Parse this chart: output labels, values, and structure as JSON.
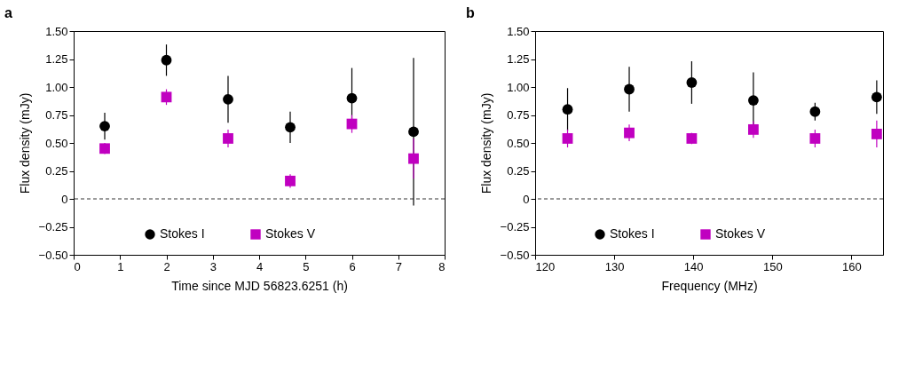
{
  "chart_data": [
    {
      "type": "scatter",
      "title": "a",
      "xlabel": "Time since MJD 56823.6251 (h)",
      "ylabel": "Flux density (mJy)",
      "x": [
        0.67,
        2,
        3.33,
        4.67,
        6,
        7.33
      ],
      "series": [
        {
          "name": "Stokes I",
          "color": "#000000",
          "marker": "circle",
          "values": [
            0.65,
            1.24,
            0.89,
            0.64,
            0.9,
            0.6
          ],
          "errors": [
            0.12,
            0.14,
            0.21,
            0.14,
            0.27,
            0.66
          ]
        },
        {
          "name": "Stokes V",
          "color": "#c000c0",
          "marker": "square",
          "values": [
            0.45,
            0.91,
            0.54,
            0.16,
            0.67,
            0.36
          ],
          "errors": [
            0.05,
            0.07,
            0.08,
            0.06,
            0.08,
            0.18
          ]
        }
      ],
      "xlim": [
        0,
        8
      ],
      "xticks": [
        0,
        1,
        2,
        3,
        4,
        5,
        6,
        7,
        8
      ],
      "ylim": [
        -0.5,
        1.5
      ],
      "yticks": [
        {
          "value": -0.5,
          "label": "−0.50"
        },
        {
          "value": -0.25,
          "label": "−0.25"
        },
        0,
        {
          "value": 0.25,
          "label": "0.25"
        },
        {
          "value": 0.5,
          "label": "0.50"
        },
        {
          "value": 0.75,
          "label": "0.75"
        },
        {
          "value": 1,
          "label": "1.00"
        },
        {
          "value": 1.25,
          "label": "1.25"
        },
        {
          "value": 1.5,
          "label": "1.50"
        }
      ],
      "ref_lines": [
        {
          "axis": "y",
          "value": 0,
          "line_style": "dashed"
        }
      ],
      "legend": "bottom",
      "grid": false
    },
    {
      "type": "scatter",
      "title": "b",
      "xlabel": "Frequency (MHz)",
      "ylabel": "Flux density (mJy)",
      "x": [
        124.1,
        131.9,
        139.8,
        147.6,
        155.4,
        163.2
      ],
      "series": [
        {
          "name": "Stokes I",
          "color": "#000000",
          "marker": "circle",
          "values": [
            0.8,
            0.98,
            1.04,
            0.88,
            0.78,
            0.91
          ],
          "errors": [
            0.19,
            0.2,
            0.19,
            0.25,
            0.08,
            0.15
          ]
        },
        {
          "name": "Stokes V",
          "color": "#c000c0",
          "marker": "square",
          "values": [
            0.54,
            0.59,
            0.54,
            0.62,
            0.54,
            0.58
          ],
          "errors": [
            0.08,
            0.075,
            0.05,
            0.075,
            0.08,
            0.12
          ]
        }
      ],
      "xlim": [
        120,
        164
      ],
      "xticks": [
        120,
        130,
        140,
        150,
        160
      ],
      "ylim": [
        -0.5,
        1.5
      ],
      "yticks": [
        {
          "value": -0.5,
          "label": "−0.50"
        },
        {
          "value": -0.25,
          "label": "−0.25"
        },
        0,
        {
          "value": 0.25,
          "label": "0.25"
        },
        {
          "value": 0.5,
          "label": "0.50"
        },
        {
          "value": 0.75,
          "label": "0.75"
        },
        {
          "value": 1,
          "label": "1.00"
        },
        {
          "value": 1.25,
          "label": "1.25"
        },
        {
          "value": 1.5,
          "label": "1.50"
        }
      ],
      "ref_lines": [
        {
          "axis": "y",
          "value": 0,
          "line_style": "dashed"
        }
      ],
      "legend": "bottom",
      "grid": false
    }
  ]
}
